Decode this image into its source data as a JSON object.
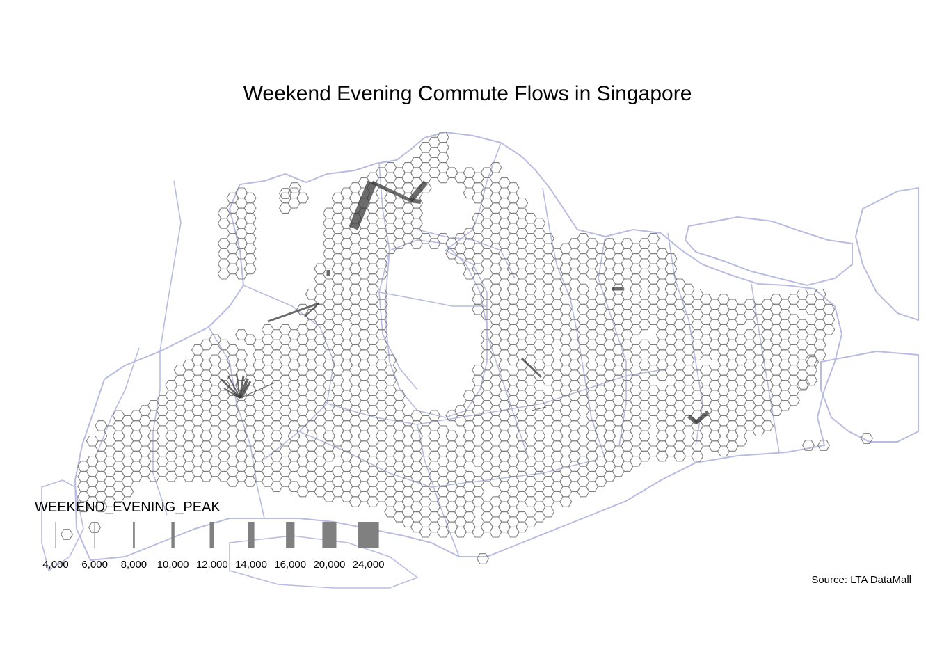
{
  "title": "Weekend Evening Commute Flows in Singapore",
  "source": "Source: LTA DataMall",
  "legend": {
    "title": "WEEKEND_EVENING_PEAK",
    "items": [
      {
        "label": "4,000",
        "value": 4000
      },
      {
        "label": "6,000",
        "value": 6000
      },
      {
        "label": "8,000",
        "value": 8000
      },
      {
        "label": "10,000",
        "value": 10000
      },
      {
        "label": "12,000",
        "value": 12000
      },
      {
        "label": "14,000",
        "value": 14000
      },
      {
        "label": "16,000",
        "value": 16000
      },
      {
        "label": "20,000",
        "value": 20000
      },
      {
        "label": "24,000",
        "value": 24000
      }
    ]
  },
  "colors": {
    "boundary": "#b8bce0",
    "hexagon": "#808080",
    "flow": "#3a3a3a",
    "background": "#ffffff"
  }
}
